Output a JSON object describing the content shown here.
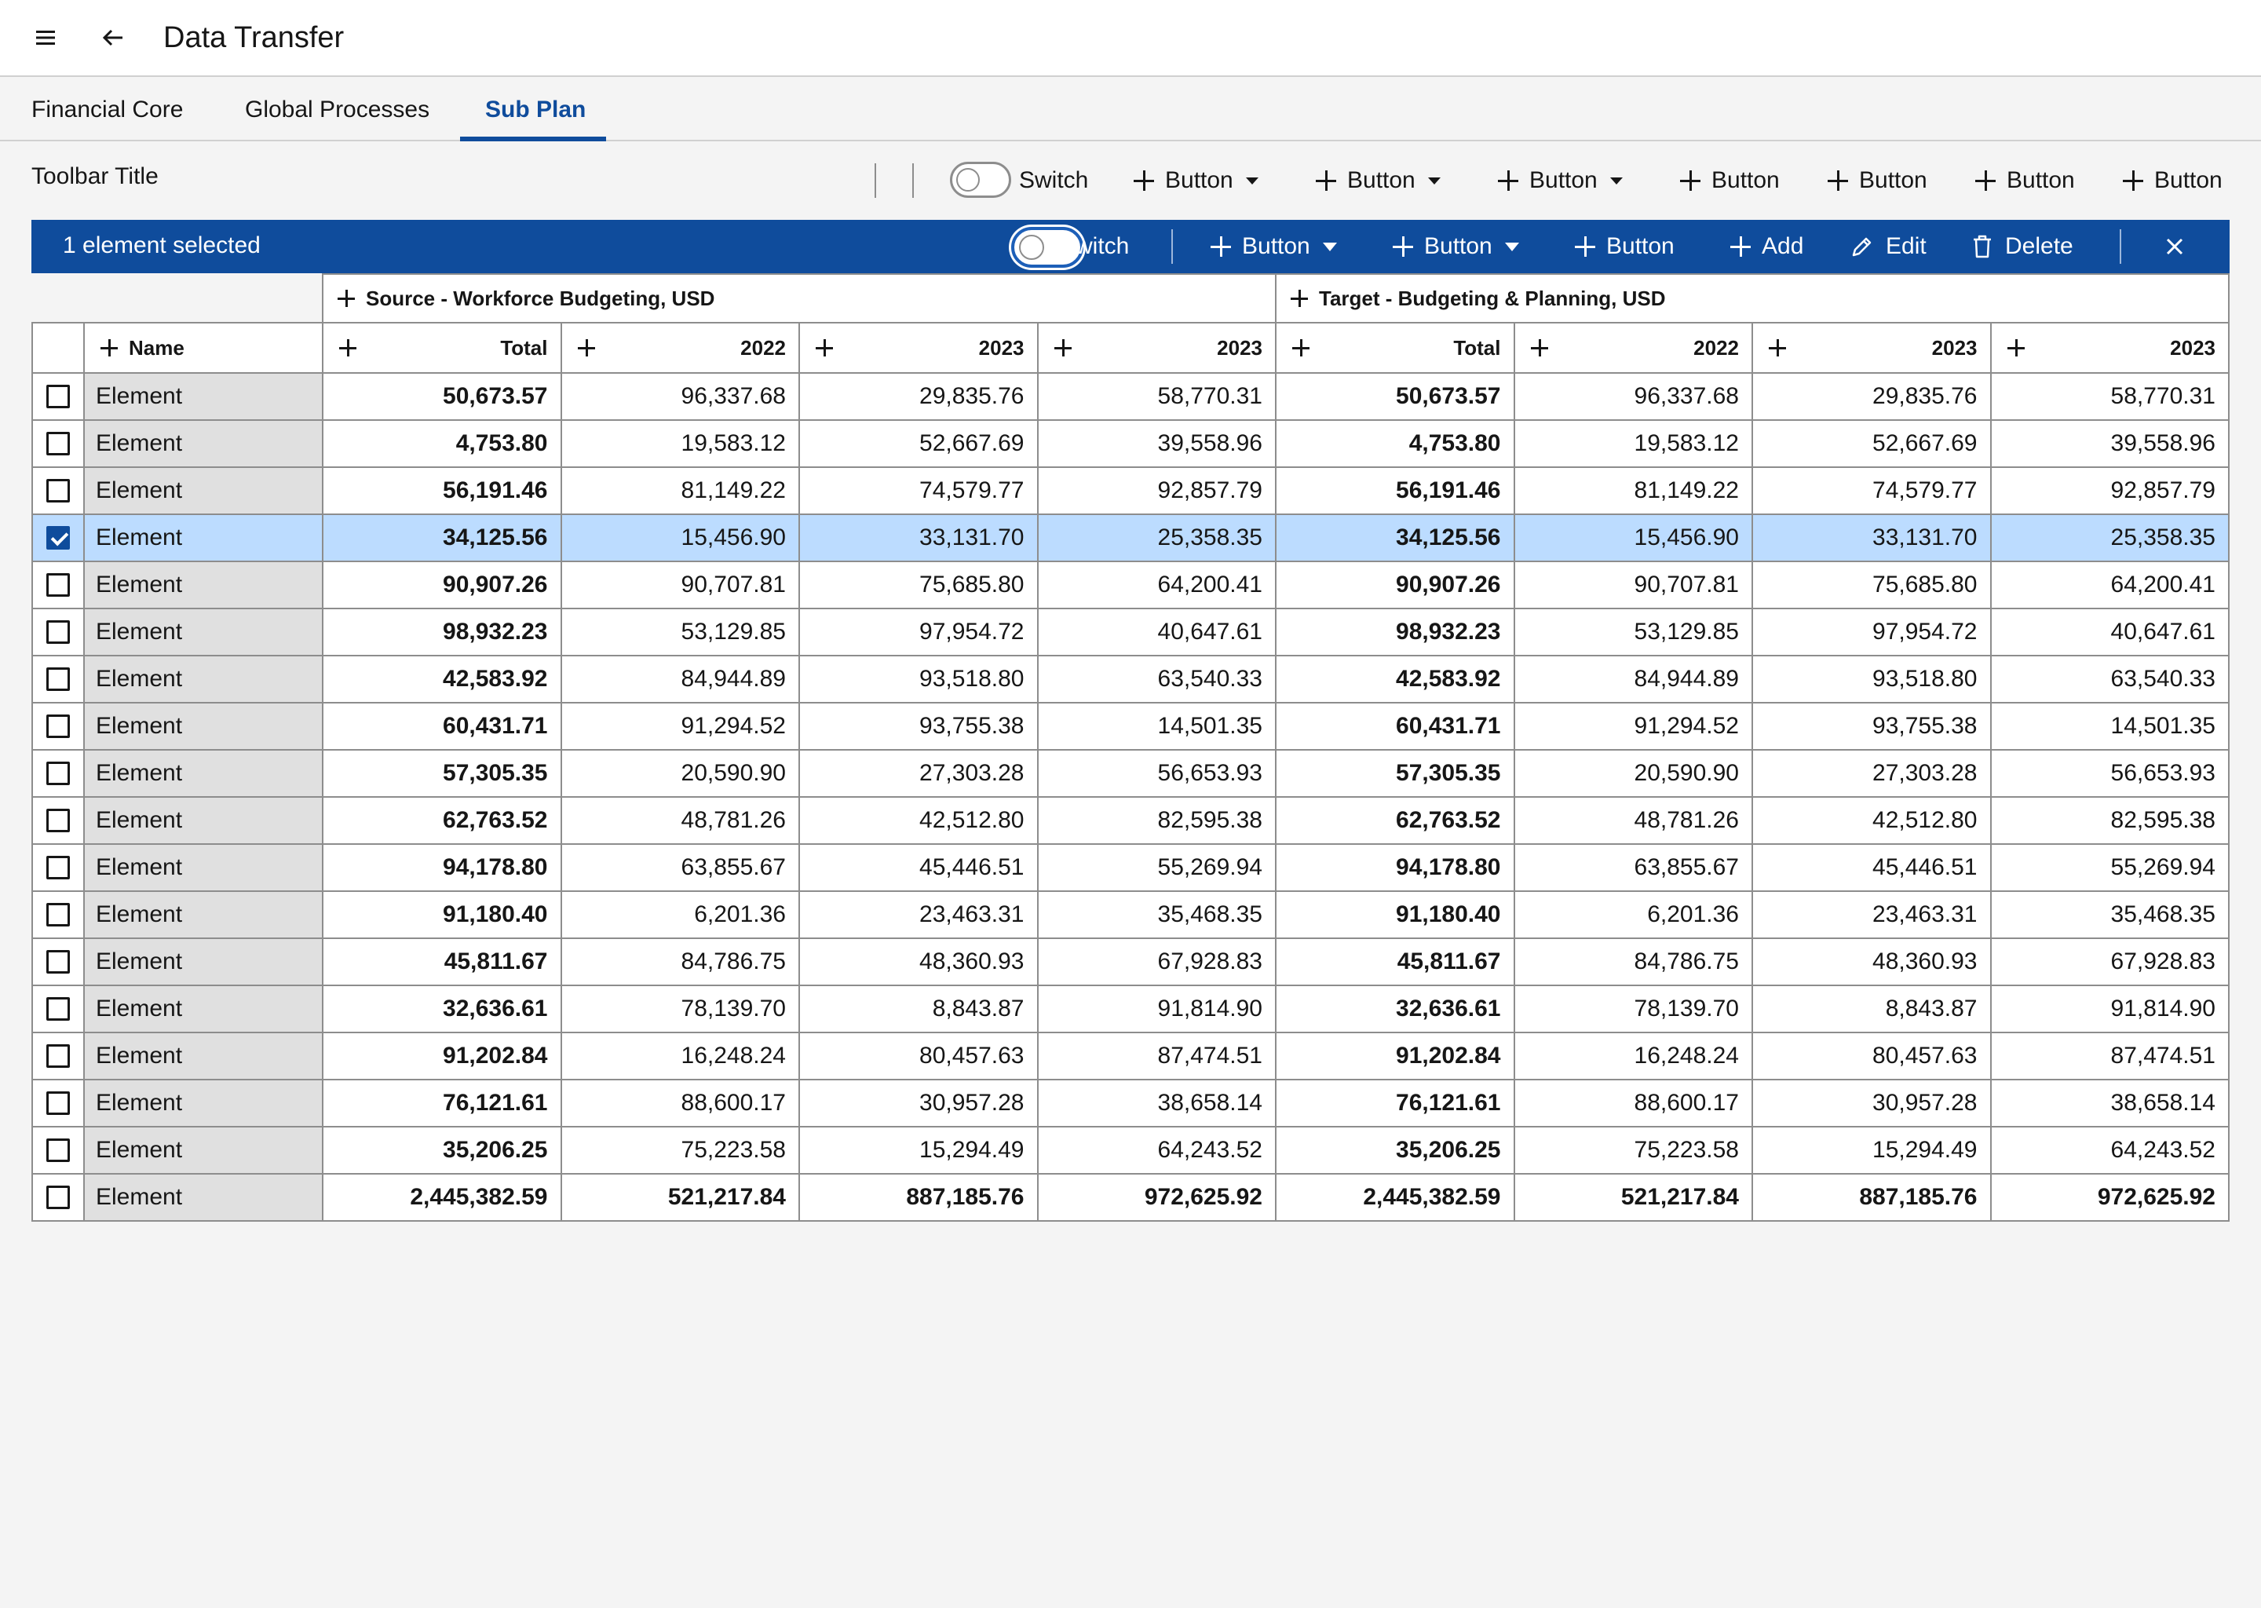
{
  "app": {
    "title": "Data Transfer"
  },
  "tabs": [
    {
      "label": "Financial Core",
      "active": false
    },
    {
      "label": "Global Processes",
      "active": false
    },
    {
      "label": "Sub Plan",
      "active": true
    }
  ],
  "toolbar": {
    "title": "Toolbar Title",
    "switch_label": "Switch",
    "buttons": [
      {
        "label": "Button",
        "dropdown": true
      },
      {
        "label": "Button",
        "dropdown": true
      },
      {
        "label": "Button",
        "dropdown": true
      },
      {
        "label": "Button",
        "dropdown": false
      },
      {
        "label": "Button",
        "dropdown": false
      },
      {
        "label": "Button",
        "dropdown": false
      },
      {
        "label": "Button",
        "dropdown": false
      }
    ]
  },
  "selection_bar": {
    "text": "1 element selected",
    "switch_label": "Switch",
    "buttons": [
      {
        "label": "Button",
        "dropdown": true
      },
      {
        "label": "Button",
        "dropdown": true
      },
      {
        "label": "Button",
        "dropdown": false
      }
    ],
    "add_label": "Add",
    "edit_label": "Edit",
    "delete_label": "Delete"
  },
  "table": {
    "groups": [
      "Source - Workforce Budgeting, USD",
      "Target - Budgeting & Planning, USD"
    ],
    "name_header": "Name",
    "column_headers": [
      "Total",
      "2022",
      "2023",
      "2023",
      "Total",
      "2022",
      "2023",
      "2023"
    ],
    "rows": [
      {
        "name": "Element",
        "checked": false,
        "values": [
          "50,673.57",
          "96,337.68",
          "29,835.76",
          "58,770.31",
          "50,673.57",
          "96,337.68",
          "29,835.76",
          "58,770.31"
        ]
      },
      {
        "name": "Element",
        "checked": false,
        "values": [
          "4,753.80",
          "19,583.12",
          "52,667.69",
          "39,558.96",
          "4,753.80",
          "19,583.12",
          "52,667.69",
          "39,558.96"
        ]
      },
      {
        "name": "Element",
        "checked": false,
        "values": [
          "56,191.46",
          "81,149.22",
          "74,579.77",
          "92,857.79",
          "56,191.46",
          "81,149.22",
          "74,579.77",
          "92,857.79"
        ]
      },
      {
        "name": "Element",
        "checked": true,
        "values": [
          "34,125.56",
          "15,456.90",
          "33,131.70",
          "25,358.35",
          "34,125.56",
          "15,456.90",
          "33,131.70",
          "25,358.35"
        ]
      },
      {
        "name": "Element",
        "checked": false,
        "values": [
          "90,907.26",
          "90,707.81",
          "75,685.80",
          "64,200.41",
          "90,907.26",
          "90,707.81",
          "75,685.80",
          "64,200.41"
        ]
      },
      {
        "name": "Element",
        "checked": false,
        "values": [
          "98,932.23",
          "53,129.85",
          "97,954.72",
          "40,647.61",
          "98,932.23",
          "53,129.85",
          "97,954.72",
          "40,647.61"
        ]
      },
      {
        "name": "Element",
        "checked": false,
        "values": [
          "42,583.92",
          "84,944.89",
          "93,518.80",
          "63,540.33",
          "42,583.92",
          "84,944.89",
          "93,518.80",
          "63,540.33"
        ]
      },
      {
        "name": "Element",
        "checked": false,
        "values": [
          "60,431.71",
          "91,294.52",
          "93,755.38",
          "14,501.35",
          "60,431.71",
          "91,294.52",
          "93,755.38",
          "14,501.35"
        ]
      },
      {
        "name": "Element",
        "checked": false,
        "values": [
          "57,305.35",
          "20,590.90",
          "27,303.28",
          "56,653.93",
          "57,305.35",
          "20,590.90",
          "27,303.28",
          "56,653.93"
        ]
      },
      {
        "name": "Element",
        "checked": false,
        "values": [
          "62,763.52",
          "48,781.26",
          "42,512.80",
          "82,595.38",
          "62,763.52",
          "48,781.26",
          "42,512.80",
          "82,595.38"
        ]
      },
      {
        "name": "Element",
        "checked": false,
        "values": [
          "94,178.80",
          "63,855.67",
          "45,446.51",
          "55,269.94",
          "94,178.80",
          "63,855.67",
          "45,446.51",
          "55,269.94"
        ]
      },
      {
        "name": "Element",
        "checked": false,
        "values": [
          "91,180.40",
          "6,201.36",
          "23,463.31",
          "35,468.35",
          "91,180.40",
          "6,201.36",
          "23,463.31",
          "35,468.35"
        ]
      },
      {
        "name": "Element",
        "checked": false,
        "values": [
          "45,811.67",
          "84,786.75",
          "48,360.93",
          "67,928.83",
          "45,811.67",
          "84,786.75",
          "48,360.93",
          "67,928.83"
        ]
      },
      {
        "name": "Element",
        "checked": false,
        "values": [
          "32,636.61",
          "78,139.70",
          "8,843.87",
          "91,814.90",
          "32,636.61",
          "78,139.70",
          "8,843.87",
          "91,814.90"
        ]
      },
      {
        "name": "Element",
        "checked": false,
        "values": [
          "91,202.84",
          "16,248.24",
          "80,457.63",
          "87,474.51",
          "91,202.84",
          "16,248.24",
          "80,457.63",
          "87,474.51"
        ]
      },
      {
        "name": "Element",
        "checked": false,
        "values": [
          "76,121.61",
          "88,600.17",
          "30,957.28",
          "38,658.14",
          "76,121.61",
          "88,600.17",
          "30,957.28",
          "38,658.14"
        ]
      },
      {
        "name": "Element",
        "checked": false,
        "values": [
          "35,206.25",
          "75,223.58",
          "15,294.49",
          "64,243.52",
          "35,206.25",
          "75,223.58",
          "15,294.49",
          "64,243.52"
        ]
      },
      {
        "name": "Element",
        "checked": false,
        "total_row": true,
        "values": [
          "2,445,382.59",
          "521,217.84",
          "887,185.76",
          "972,625.92",
          "2,445,382.59",
          "521,217.84",
          "887,185.76",
          "972,625.92"
        ]
      }
    ]
  },
  "colors": {
    "accent": "#0f4c9c",
    "selected_row": "#bcdcff",
    "name_column": "#e0e0e0",
    "background": "#f4f4f4"
  },
  "icons": [
    "menu-icon",
    "arrow-left-icon",
    "plus-icon",
    "chevron-down-icon",
    "pencil-icon",
    "trash-icon",
    "close-icon",
    "checkbox-icon"
  ]
}
